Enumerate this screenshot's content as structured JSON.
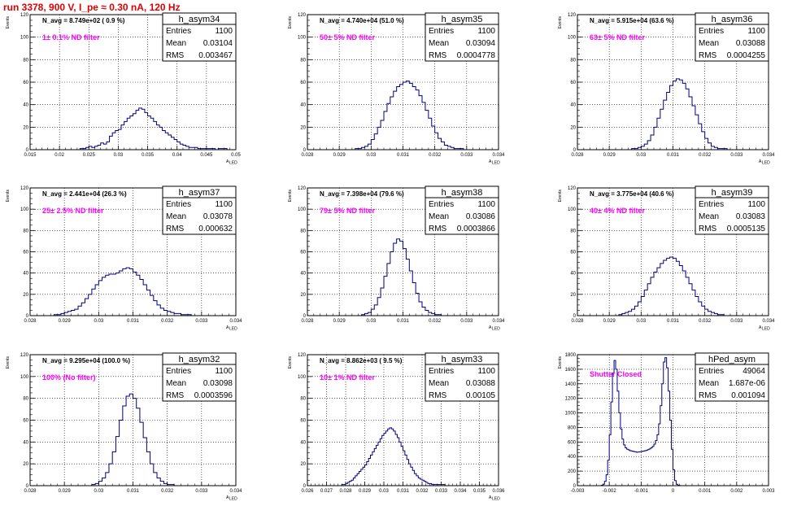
{
  "title": "run 3378,   900 V, I_pe ≈ 0.30 nA, 120 Hz",
  "chart_data": [
    {
      "type": "histogram",
      "name": "h_asym34",
      "navg": "N_avg = 8.749e+02 ( 0.9 %)",
      "filter": "1± 0.1% ND filter",
      "stats": [
        [
          "Entries",
          "1100"
        ],
        [
          "Mean",
          "0.03104"
        ],
        [
          "RMS",
          "0.003467"
        ]
      ],
      "xlabel": "A",
      "xlabel_sub": "LED",
      "ylabel": "Events",
      "xlim": [
        0.015,
        0.05
      ],
      "ylim": [
        0,
        120
      ],
      "xticks": [
        0.015,
        0.02,
        0.025,
        0.03,
        0.035,
        0.04,
        0.045,
        0.05
      ],
      "xtick_labels": [
        "0.015",
        "0.02",
        "0.025",
        "0.03",
        "0.035",
        "0.04",
        "0.045",
        "0.05"
      ],
      "yticks": [
        0,
        20,
        40,
        60,
        80,
        100,
        120
      ],
      "grid": true,
      "bins": {
        "start": 0.0235,
        "width": 0.0005,
        "values": [
          1,
          1,
          2,
          3,
          2,
          3,
          4,
          6,
          5,
          7,
          12,
          15,
          17,
          18,
          22,
          25,
          28,
          30,
          32,
          35,
          37,
          36,
          33,
          30,
          28,
          25,
          22,
          20,
          17,
          15,
          13,
          11,
          9,
          7,
          5,
          4,
          3,
          2,
          2,
          2,
          1,
          1,
          1,
          1,
          1,
          1,
          0,
          1,
          1,
          1
        ]
      }
    },
    {
      "type": "histogram",
      "name": "h_asym35",
      "navg": "N_avg = 4.740e+04 (51.0 %)",
      "filter": "50± 5% ND filter",
      "stats": [
        [
          "Entries",
          "1100"
        ],
        [
          "Mean",
          "0.03094"
        ],
        [
          "RMS",
          "0.0004778"
        ]
      ],
      "xlabel": "A",
      "xlabel_sub": "LED",
      "ylabel": "Events",
      "xlim": [
        0.028,
        0.034
      ],
      "ylim": [
        0,
        120
      ],
      "xticks": [
        0.028,
        0.029,
        0.03,
        0.031,
        0.032,
        0.033,
        0.034
      ],
      "xtick_labels": [
        "0.028",
        "0.029",
        "0.03",
        "0.031",
        "0.032",
        "0.033",
        "0.034"
      ],
      "yticks": [
        0,
        20,
        40,
        60,
        80,
        100,
        120
      ],
      "grid": true,
      "bins": {
        "start": 0.0295,
        "width": 0.0001,
        "values": [
          1,
          1,
          2,
          3,
          5,
          9,
          14,
          20,
          26,
          34,
          41,
          47,
          52,
          56,
          58,
          60,
          61,
          59,
          56,
          53,
          48,
          42,
          35,
          28,
          21,
          15,
          10,
          7,
          4,
          3,
          2,
          1,
          1,
          1
        ]
      }
    },
    {
      "type": "histogram",
      "name": "h_asym36",
      "navg": "N_avg = 5.915e+04 (63.6 %)",
      "filter": "63± 5% ND filter",
      "stats": [
        [
          "Entries",
          "1100"
        ],
        [
          "Mean",
          "0.03088"
        ],
        [
          "RMS",
          "0.0004255"
        ]
      ],
      "xlabel": "A",
      "xlabel_sub": "LED",
      "ylabel": "Events",
      "xlim": [
        0.028,
        0.034
      ],
      "ylim": [
        0,
        120
      ],
      "xticks": [
        0.028,
        0.029,
        0.03,
        0.031,
        0.032,
        0.033,
        0.034
      ],
      "xtick_labels": [
        "0.028",
        "0.029",
        "0.03",
        "0.031",
        "0.032",
        "0.033",
        "0.034"
      ],
      "yticks": [
        0,
        20,
        40,
        60,
        80,
        100,
        120
      ],
      "grid": true,
      "bins": {
        "start": 0.0297,
        "width": 0.0001,
        "values": [
          1,
          1,
          2,
          3,
          5,
          8,
          13,
          20,
          28,
          36,
          44,
          51,
          57,
          61,
          63,
          62,
          59,
          54,
          47,
          39,
          31,
          23,
          16,
          10,
          6,
          3,
          2,
          1,
          1,
          1
        ]
      }
    },
    {
      "type": "histogram",
      "name": "h_asym37",
      "navg": "N_avg = 2.441e+04 (26.3 %)",
      "filter": "25± 2.5% ND filter",
      "stats": [
        [
          "Entries",
          "1100"
        ],
        [
          "Mean",
          "0.03078"
        ],
        [
          "RMS",
          "0.000632"
        ]
      ],
      "xlabel": "A",
      "xlabel_sub": "LED",
      "ylabel": "Events",
      "xlim": [
        0.028,
        0.034
      ],
      "ylim": [
        0,
        120
      ],
      "xticks": [
        0.028,
        0.029,
        0.03,
        0.031,
        0.032,
        0.033,
        0.034
      ],
      "xtick_labels": [
        "0.028",
        "0.029",
        "0.03",
        "0.031",
        "0.032",
        "0.033",
        "0.034"
      ],
      "yticks": [
        0,
        20,
        40,
        60,
        80,
        100,
        120
      ],
      "grid": true,
      "bins": {
        "start": 0.0287,
        "width": 0.0001,
        "values": [
          1,
          1,
          2,
          3,
          4,
          5,
          6,
          9,
          12,
          16,
          20,
          25,
          29,
          33,
          36,
          38,
          39,
          39,
          40,
          42,
          44,
          45,
          44,
          41,
          38,
          34,
          29,
          24,
          19,
          14,
          10,
          7,
          5,
          4,
          3,
          2,
          2,
          1,
          1,
          1
        ]
      }
    },
    {
      "type": "histogram",
      "name": "h_asym38",
      "navg": "N_avg = 7.398e+04 (79.6 %)",
      "filter": "79± 5% ND filter",
      "stats": [
        [
          "Entries",
          "1100"
        ],
        [
          "Mean",
          "0.03086"
        ],
        [
          "RMS",
          "0.0003866"
        ]
      ],
      "xlabel": "A",
      "xlabel_sub": "LED",
      "ylabel": "Events",
      "xlim": [
        0.028,
        0.034
      ],
      "ylim": [
        0,
        120
      ],
      "xticks": [
        0.028,
        0.029,
        0.03,
        0.031,
        0.032,
        0.033,
        0.034
      ],
      "xtick_labels": [
        "0.028",
        "0.029",
        "0.03",
        "0.031",
        "0.032",
        "0.033",
        "0.034"
      ],
      "yticks": [
        0,
        20,
        40,
        60,
        80,
        100,
        120
      ],
      "grid": true,
      "bins": {
        "start": 0.0297,
        "width": 0.0001,
        "values": [
          1,
          2,
          3,
          6,
          10,
          17,
          26,
          37,
          49,
          60,
          68,
          72,
          70,
          63,
          53,
          42,
          31,
          21,
          13,
          8,
          5,
          3,
          2,
          1,
          1
        ]
      }
    },
    {
      "type": "histogram",
      "name": "h_asym39",
      "navg": "N_avg = 3.775e+04 (40.6 %)",
      "filter": "40± 4% ND filter",
      "stats": [
        [
          "Entries",
          "1100"
        ],
        [
          "Mean",
          "0.03083"
        ],
        [
          "RMS",
          "0.0005135"
        ]
      ],
      "xlabel": "A",
      "xlabel_sub": "LED",
      "ylabel": "Events",
      "xlim": [
        0.028,
        0.034
      ],
      "ylim": [
        0,
        120
      ],
      "xticks": [
        0.028,
        0.029,
        0.03,
        0.031,
        0.032,
        0.033,
        0.034
      ],
      "xtick_labels": [
        "0.028",
        "0.029",
        "0.03",
        "0.031",
        "0.032",
        "0.033",
        "0.034"
      ],
      "yticks": [
        0,
        20,
        40,
        60,
        80,
        100,
        120
      ],
      "grid": true,
      "bins": {
        "start": 0.0293,
        "width": 0.0001,
        "values": [
          1,
          2,
          3,
          4,
          6,
          9,
          13,
          18,
          24,
          30,
          36,
          41,
          45,
          49,
          52,
          54,
          55,
          54,
          51,
          47,
          42,
          36,
          30,
          24,
          18,
          13,
          9,
          6,
          4,
          3,
          2,
          1,
          1
        ]
      }
    },
    {
      "type": "histogram",
      "name": "h_asym32",
      "navg": "N_avg = 9.295e+04 (100.0 %)",
      "filter": "100% (No filter)",
      "stats": [
        [
          "Entries",
          "1100"
        ],
        [
          "Mean",
          "0.03098"
        ],
        [
          "RMS",
          "0.0003596"
        ]
      ],
      "xlabel": "A",
      "xlabel_sub": "LED",
      "ylabel": "Events",
      "xlim": [
        0.028,
        0.034
      ],
      "ylim": [
        0,
        120
      ],
      "xticks": [
        0.028,
        0.029,
        0.03,
        0.031,
        0.032,
        0.033,
        0.034
      ],
      "xtick_labels": [
        "0.028",
        "0.029",
        "0.03",
        "0.031",
        "0.032",
        "0.033",
        "0.034"
      ],
      "yticks": [
        0,
        20,
        40,
        60,
        80,
        100,
        120
      ],
      "grid": true,
      "bins": {
        "start": 0.0298,
        "width": 0.0001,
        "values": [
          1,
          2,
          4,
          7,
          12,
          20,
          31,
          45,
          60,
          73,
          82,
          84,
          80,
          71,
          58,
          44,
          31,
          20,
          12,
          7,
          4,
          2,
          1,
          1
        ]
      }
    },
    {
      "type": "histogram",
      "name": "h_asym33",
      "navg": "N_avg = 8.862e+03 ( 9.5 %)",
      "filter": "10± 1% ND filter",
      "stats": [
        [
          "Entries",
          "1100"
        ],
        [
          "Mean",
          "0.03088"
        ],
        [
          "RMS",
          "0.00105"
        ]
      ],
      "xlabel": "A",
      "xlabel_sub": "LED",
      "ylabel": "Events",
      "xlim": [
        0.026,
        0.036
      ],
      "ylim": [
        0,
        120
      ],
      "xticks": [
        0.026,
        0.027,
        0.028,
        0.029,
        0.03,
        0.031,
        0.032,
        0.033,
        0.034,
        0.035,
        0.036
      ],
      "xtick_labels": [
        "0.026",
        "0.027",
        "0.028",
        "0.029",
        "0.03",
        "0.031",
        "0.032",
        "0.033",
        "0.034",
        "0.035",
        "0.036"
      ],
      "yticks": [
        0,
        20,
        40,
        60,
        80,
        100,
        120
      ],
      "grid": true,
      "bins": {
        "start": 0.0278,
        "width": 0.0001,
        "values": [
          1,
          1,
          2,
          3,
          4,
          5,
          7,
          9,
          11,
          13,
          15,
          17,
          19,
          22,
          25,
          28,
          31,
          34,
          37,
          40,
          43,
          46,
          48,
          50,
          52,
          53,
          52,
          50,
          47,
          44,
          40,
          36,
          32,
          28,
          24,
          20,
          17,
          14,
          11,
          9,
          7,
          6,
          5,
          4,
          3,
          2,
          2,
          1,
          1,
          1,
          1,
          1,
          1,
          1
        ]
      }
    },
    {
      "type": "histogram",
      "name": "hPed_asym",
      "navg": "",
      "filter": "Shutter Closed",
      "stats": [
        [
          "Entries",
          "49064"
        ],
        [
          "Mean",
          "1.687e-06"
        ],
        [
          "RMS",
          "0.001094"
        ]
      ],
      "xlabel": "",
      "xlabel_sub": "",
      "ylabel": "Events",
      "xlim": [
        -0.003,
        0.003
      ],
      "ylim": [
        0,
        1800
      ],
      "xticks": [
        -0.003,
        -0.002,
        -0.001,
        0,
        0.001,
        0.002,
        0.003
      ],
      "xtick_labels": [
        "-0.003",
        "-0.002",
        "-0.001",
        "0",
        "0.001",
        "0.002",
        "0.003"
      ],
      "yticks": [
        0,
        200,
        400,
        600,
        800,
        1000,
        1200,
        1400,
        1600,
        1800
      ],
      "grid": true,
      "bins": {
        "start": -0.00225,
        "width": 5e-05,
        "values": [
          5,
          20,
          60,
          150,
          350,
          700,
          1150,
          1550,
          1720,
          1600,
          1300,
          1000,
          780,
          640,
          560,
          520,
          500,
          490,
          480,
          475,
          470,
          465,
          460,
          462,
          465,
          470,
          475,
          480,
          485,
          495,
          505,
          520,
          540,
          570,
          620,
          700,
          850,
          1100,
          1400,
          1700,
          1760,
          1620,
          1300,
          900,
          500,
          220,
          70,
          20,
          5,
          2
        ]
      }
    }
  ]
}
